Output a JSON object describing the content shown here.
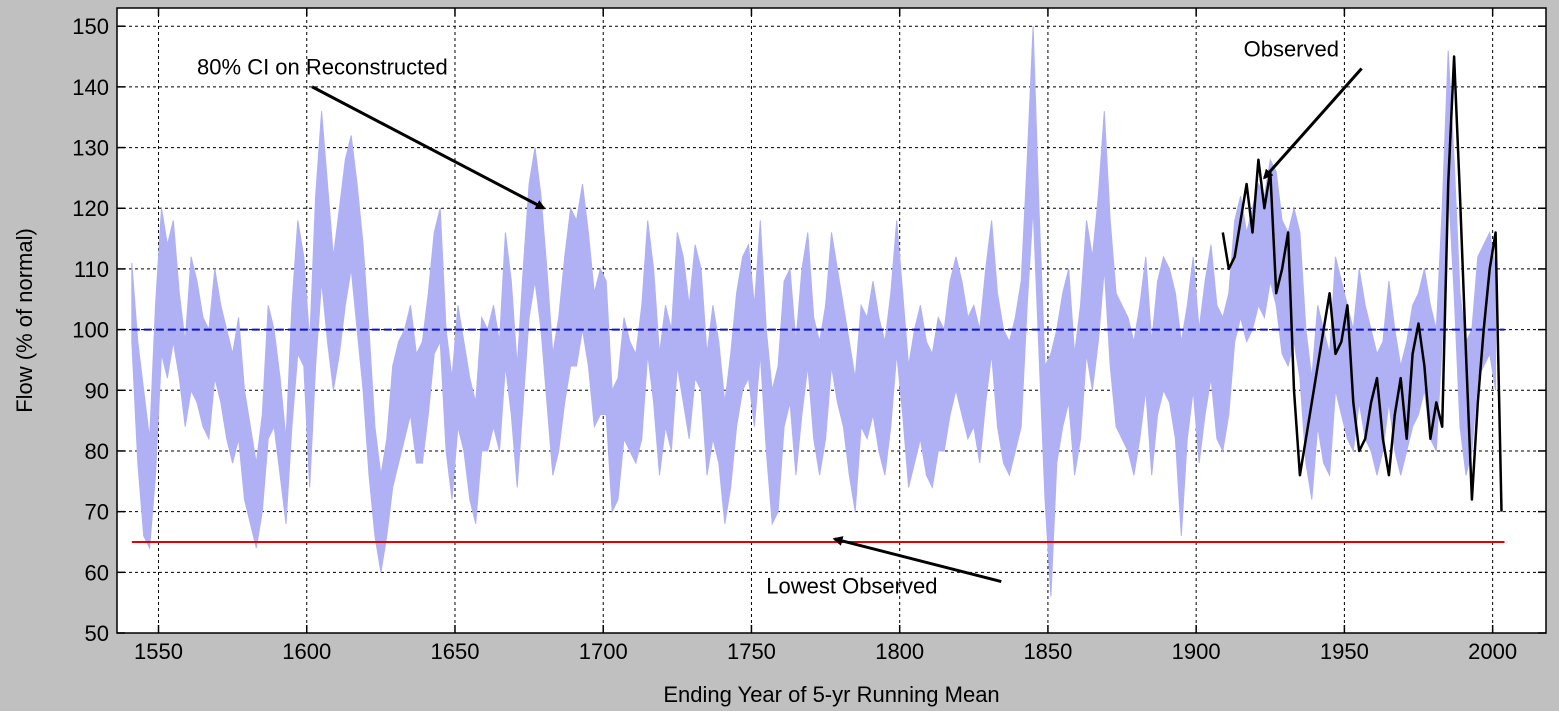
{
  "chart_data": {
    "type": "area",
    "title": "",
    "xlabel": "Ending Year of 5-yr Running Mean",
    "ylabel": "Flow (% of normal)",
    "xlim": [
      1536,
      2018
    ],
    "ylim": [
      50,
      153
    ],
    "xticks": [
      1550,
      1600,
      1650,
      1700,
      1750,
      1800,
      1850,
      1900,
      1950,
      2000
    ],
    "yticks": [
      50,
      60,
      70,
      80,
      90,
      100,
      110,
      120,
      130,
      140,
      150
    ],
    "grid": true,
    "legend": "none",
    "colors": {
      "ci_band": "#b0b0f4",
      "observed": "#000000",
      "normal": "#1010c8",
      "lowest": "#e00000",
      "plot_bg": "#ffffff",
      "figure_bg": "#c0c0c0"
    },
    "series": [
      {
        "name": "80% CI on Reconstructed",
        "kind": "band",
        "x": [
          1541,
          1543,
          1545,
          1547,
          1549,
          1551,
          1553,
          1555,
          1557,
          1559,
          1561,
          1563,
          1565,
          1567,
          1569,
          1571,
          1573,
          1575,
          1577,
          1579,
          1581,
          1583,
          1585,
          1587,
          1589,
          1591,
          1593,
          1595,
          1597,
          1599,
          1601,
          1603,
          1605,
          1607,
          1609,
          1611,
          1613,
          1615,
          1617,
          1619,
          1621,
          1623,
          1625,
          1627,
          1629,
          1631,
          1633,
          1635,
          1637,
          1639,
          1641,
          1643,
          1645,
          1647,
          1649,
          1651,
          1653,
          1655,
          1657,
          1659,
          1661,
          1663,
          1665,
          1667,
          1669,
          1671,
          1673,
          1675,
          1677,
          1679,
          1681,
          1683,
          1685,
          1687,
          1689,
          1691,
          1693,
          1695,
          1697,
          1699,
          1701,
          1703,
          1705,
          1707,
          1709,
          1711,
          1713,
          1715,
          1717,
          1719,
          1721,
          1723,
          1725,
          1727,
          1729,
          1731,
          1733,
          1735,
          1737,
          1739,
          1741,
          1743,
          1745,
          1747,
          1749,
          1751,
          1753,
          1755,
          1757,
          1759,
          1761,
          1763,
          1765,
          1767,
          1769,
          1771,
          1773,
          1775,
          1777,
          1779,
          1781,
          1783,
          1785,
          1787,
          1789,
          1791,
          1793,
          1795,
          1797,
          1799,
          1801,
          1803,
          1805,
          1807,
          1809,
          1811,
          1813,
          1815,
          1817,
          1819,
          1821,
          1823,
          1825,
          1827,
          1829,
          1831,
          1833,
          1835,
          1837,
          1839,
          1841,
          1843,
          1845,
          1847,
          1849,
          1851,
          1853,
          1855,
          1857,
          1859,
          1861,
          1863,
          1865,
          1867,
          1869,
          1871,
          1873,
          1875,
          1877,
          1879,
          1881,
          1883,
          1885,
          1887,
          1889,
          1891,
          1893,
          1895,
          1897,
          1899,
          1901,
          1903,
          1905,
          1907,
          1909,
          1911,
          1913,
          1915,
          1917,
          1919,
          1921,
          1923,
          1925,
          1927,
          1929,
          1931,
          1933,
          1935,
          1937,
          1939,
          1941,
          1943,
          1945,
          1947,
          1949,
          1951,
          1953,
          1955,
          1957,
          1959,
          1961,
          1963,
          1965,
          1967,
          1969,
          1971,
          1973,
          1975,
          1977,
          1979,
          1981,
          1983,
          1985,
          1987,
          1989,
          1991,
          1993,
          1995,
          1997,
          1999,
          2001
        ],
        "upper": [
          111,
          98,
          90,
          82,
          104,
          120,
          114,
          118,
          106,
          98,
          112,
          108,
          102,
          100,
          110,
          104,
          100,
          96,
          102,
          90,
          84,
          78,
          86,
          104,
          100,
          92,
          82,
          104,
          118,
          112,
          98,
          122,
          136,
          124,
          112,
          120,
          128,
          132,
          124,
          114,
          100,
          84,
          76,
          82,
          94,
          98,
          100,
          104,
          96,
          98,
          106,
          116,
          120,
          100,
          92,
          104,
          98,
          92,
          88,
          102,
          100,
          104,
          98,
          116,
          108,
          94,
          110,
          124,
          130,
          122,
          110,
          96,
          102,
          112,
          120,
          118,
          124,
          116,
          106,
          110,
          108,
          90,
          92,
          102,
          98,
          96,
          104,
          118,
          110,
          96,
          104,
          100,
          116,
          112,
          104,
          114,
          110,
          96,
          104,
          98,
          88,
          96,
          106,
          112,
          114,
          104,
          118,
          100,
          90,
          94,
          108,
          110,
          98,
          110,
          116,
          102,
          98,
          104,
          116,
          110,
          104,
          98,
          92,
          104,
          102,
          108,
          102,
          98,
          106,
          118,
          106,
          94,
          100,
          104,
          98,
          96,
          102,
          100,
          108,
          112,
          108,
          102,
          104,
          100,
          110,
          118,
          106,
          100,
          98,
          102,
          108,
          128,
          150,
          120,
          94,
          96,
          100,
          106,
          110,
          96,
          104,
          118,
          112,
          122,
          136,
          118,
          106,
          104,
          102,
          98,
          104,
          112,
          98,
          108,
          112,
          110,
          106,
          98,
          104,
          112,
          100,
          108,
          114,
          104,
          102,
          106,
          118,
          122,
          116,
          120,
          124,
          122,
          128,
          126,
          118,
          116,
          120,
          116,
          100,
          92,
          104,
          100,
          96,
          112,
          108,
          104,
          100,
          110,
          104,
          100,
          96,
          98,
          108,
          100,
          94,
          98,
          104,
          106,
          110,
          104,
          100,
          120,
          146,
          128,
          106,
          98,
          100,
          112,
          114,
          116,
          110
        ],
        "lower": [
          98,
          78,
          66,
          64,
          76,
          96,
          92,
          98,
          92,
          84,
          90,
          88,
          84,
          82,
          92,
          88,
          82,
          78,
          82,
          72,
          68,
          64,
          70,
          82,
          84,
          76,
          68,
          84,
          96,
          94,
          74,
          94,
          108,
          98,
          90,
          96,
          104,
          110,
          100,
          90,
          76,
          66,
          60,
          66,
          74,
          78,
          82,
          86,
          78,
          78,
          86,
          96,
          98,
          80,
          72,
          84,
          80,
          72,
          68,
          80,
          80,
          84,
          80,
          94,
          86,
          74,
          88,
          102,
          108,
          100,
          88,
          76,
          80,
          88,
          94,
          94,
          100,
          94,
          84,
          86,
          86,
          70,
          72,
          82,
          80,
          78,
          82,
          96,
          88,
          76,
          84,
          80,
          94,
          88,
          82,
          92,
          90,
          76,
          82,
          78,
          68,
          74,
          84,
          90,
          92,
          84,
          96,
          80,
          68,
          70,
          84,
          88,
          76,
          86,
          94,
          82,
          76,
          82,
          94,
          88,
          84,
          76,
          70,
          84,
          82,
          86,
          80,
          76,
          84,
          96,
          86,
          74,
          78,
          82,
          76,
          74,
          80,
          80,
          86,
          90,
          86,
          82,
          84,
          78,
          88,
          96,
          84,
          78,
          76,
          80,
          84,
          104,
          120,
          96,
          72,
          56,
          78,
          84,
          88,
          76,
          82,
          96,
          90,
          98,
          110,
          94,
          84,
          82,
          80,
          76,
          82,
          90,
          76,
          86,
          90,
          88,
          82,
          66,
          82,
          90,
          78,
          86,
          92,
          82,
          80,
          86,
          98,
          102,
          98,
          100,
          104,
          102,
          108,
          104,
          96,
          94,
          98,
          92,
          78,
          72,
          84,
          78,
          76,
          90,
          86,
          82,
          80,
          88,
          82,
          80,
          76,
          80,
          88,
          80,
          76,
          80,
          84,
          86,
          90,
          82,
          80,
          98,
          124,
          106,
          84,
          76,
          80,
          92,
          94,
          96,
          90
        ]
      },
      {
        "name": "Observed",
        "kind": "line",
        "x": [
          1909,
          1911,
          1913,
          1915,
          1917,
          1919,
          1921,
          1923,
          1925,
          1927,
          1929,
          1931,
          1933,
          1935,
          1937,
          1939,
          1941,
          1943,
          1945,
          1947,
          1949,
          1951,
          1953,
          1955,
          1957,
          1959,
          1961,
          1963,
          1965,
          1967,
          1969,
          1971,
          1973,
          1975,
          1977,
          1979,
          1981,
          1983,
          1985,
          1987,
          1989,
          1991,
          1993,
          1995,
          1997,
          1999,
          2001,
          2003
        ],
        "y": [
          116,
          110,
          112,
          118,
          124,
          116,
          128,
          120,
          126,
          106,
          110,
          116,
          90,
          76,
          82,
          88,
          94,
          100,
          106,
          96,
          98,
          104,
          88,
          80,
          82,
          88,
          92,
          82,
          76,
          86,
          92,
          82,
          96,
          101,
          94,
          82,
          88,
          84,
          124,
          145,
          122,
          96,
          72,
          88,
          100,
          110,
          116,
          70
        ]
      },
      {
        "name": "",
        "kind": "hline",
        "y": 100,
        "x": [
          1541,
          2004
        ]
      },
      {
        "name": "Lowest Observed",
        "kind": "hline",
        "y": 65,
        "x": [
          1541,
          2004
        ]
      }
    ],
    "annotations": [
      {
        "text": "80% CI on Reconstructed",
        "tx": 1563,
        "ty": 142,
        "ax": 1680,
        "ay": 120
      },
      {
        "text": "Observed",
        "tx": 1916,
        "ty": 145,
        "ax": 1923,
        "ay": 125
      },
      {
        "text": "Lowest Observed",
        "tx": 1755,
        "ty": 56.5,
        "ax": 1778,
        "ay": 65.5
      }
    ]
  }
}
